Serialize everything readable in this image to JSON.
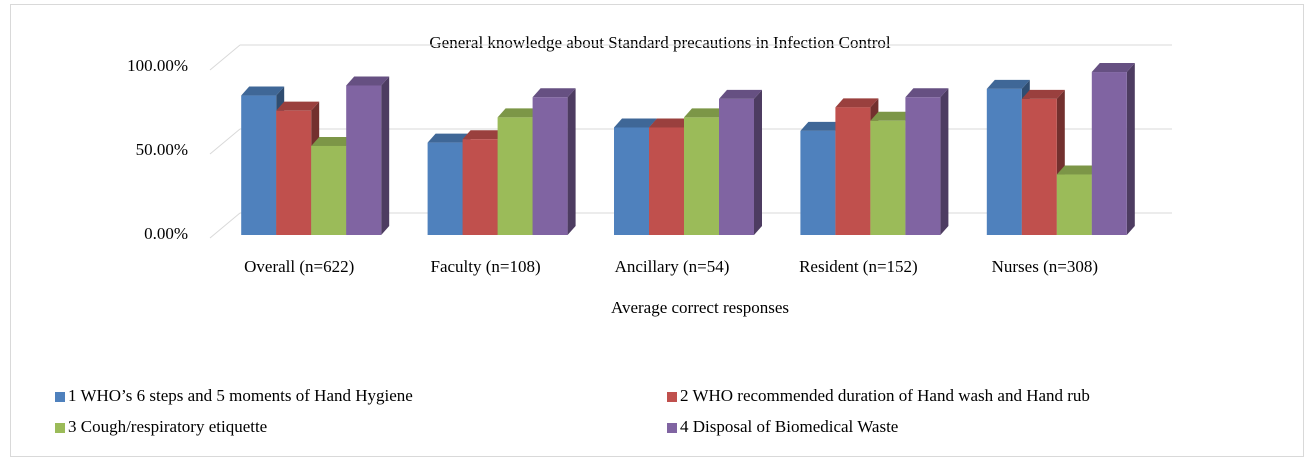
{
  "chart_data": {
    "type": "bar3d",
    "title": "General knowledge about Standard precautions in Infection Control",
    "x_label": "Average correct responses",
    "categories": [
      "Overall (n=622)",
      "Faculty (n=108)",
      "Ancillary (n=54)",
      "Resident (n=152)",
      "Nurses (n=308)"
    ],
    "series": [
      {
        "name": "1 WHO’s 6 steps and 5 moments of Hand Hygiene",
        "color": "#4f81bd",
        "values": [
          83,
          55,
          64,
          62,
          87
        ]
      },
      {
        "name": "2 WHO recommended duration of Hand wash and Hand rub",
        "color": "#c0504d",
        "values": [
          74,
          57,
          64,
          76,
          81
        ]
      },
      {
        "name": "3 Cough/respiratory etiquette",
        "color": "#9bbb59",
        "values": [
          53,
          70,
          70,
          68,
          36
        ]
      },
      {
        "name": "4 Disposal of Biomedical Waste",
        "color": "#8064a2",
        "values": [
          89,
          82,
          81,
          82,
          97
        ]
      }
    ],
    "ylim": [
      0,
      100
    ],
    "yticks": [
      {
        "value": 0,
        "label": "0.00%"
      },
      {
        "value": 50,
        "label": "50.00%"
      },
      {
        "value": 100,
        "label": "100.00%"
      }
    ],
    "grid": true,
    "legend": "bottom"
  }
}
